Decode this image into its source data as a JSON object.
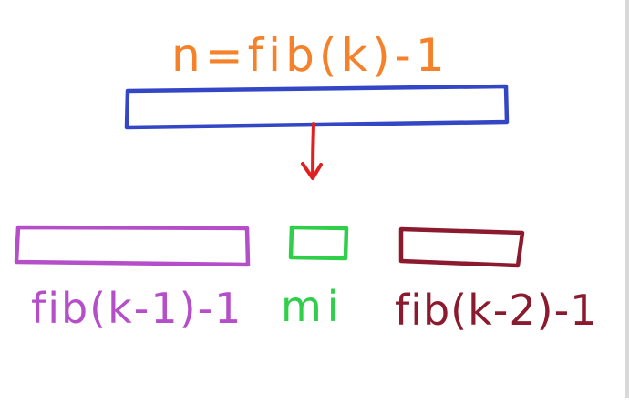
{
  "diagram": {
    "title": "n=fib(k)-1",
    "labels": {
      "left": "fib(k-1)-1",
      "middle": "mi",
      "right": "fib(k-2)-1"
    },
    "colors": {
      "title": "#f5822a",
      "top_box": "#3346c6",
      "arrow": "#e02020",
      "left": "#b54fc9",
      "middle": "#2fcf4a",
      "right": "#8b1a2e"
    }
  }
}
